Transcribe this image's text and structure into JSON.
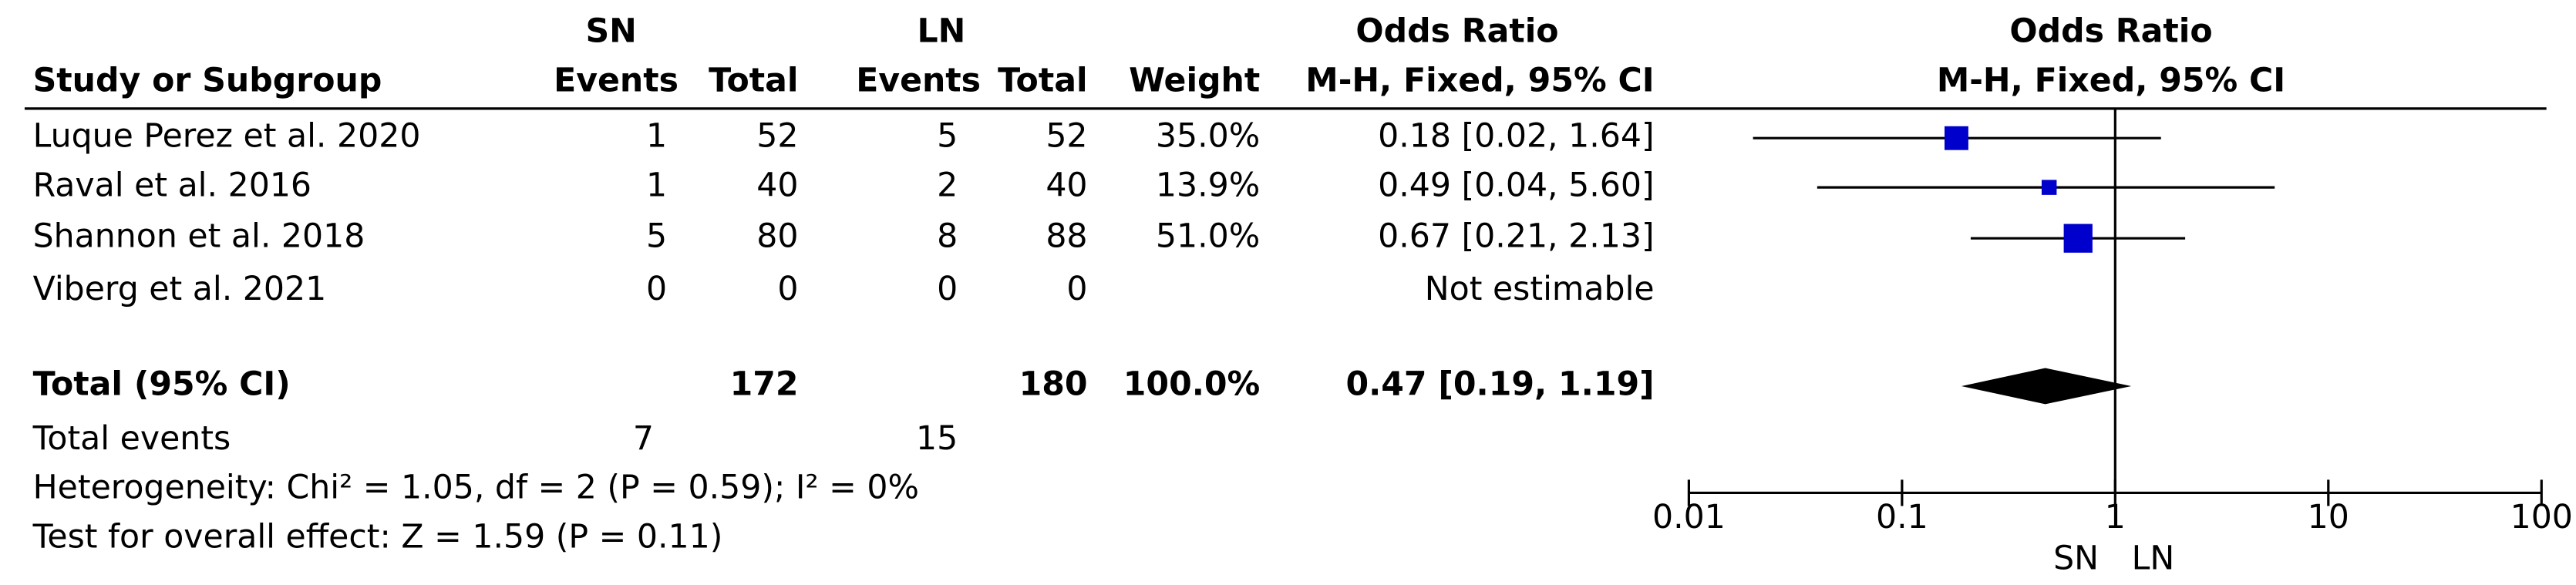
{
  "chart_data": {
    "type": "forest",
    "column_groups": [
      "SN",
      "LN",
      "Odds Ratio"
    ],
    "columns": [
      "Study or Subgroup",
      "Events",
      "Total",
      "Events",
      "Total",
      "Weight",
      "M-H, Fixed, 95% CI"
    ],
    "plot_title": "Odds Ratio",
    "plot_subtitle": "M-H, Fixed, 95% CI",
    "studies": [
      {
        "name": "Luque Perez et al. 2020",
        "sn_events": 1,
        "sn_total": 52,
        "ln_events": 5,
        "ln_total": 52,
        "weight": 35.0,
        "weight_label": "35.0%",
        "odds_ratio": 0.18,
        "ci_low": 0.02,
        "ci_high": 1.64,
        "or_label": "0.18 [0.02, 1.64]"
      },
      {
        "name": "Raval et al. 2016",
        "sn_events": 1,
        "sn_total": 40,
        "ln_events": 2,
        "ln_total": 40,
        "weight": 13.9,
        "weight_label": "13.9%",
        "odds_ratio": 0.49,
        "ci_low": 0.04,
        "ci_high": 5.6,
        "or_label": "0.49 [0.04, 5.60]"
      },
      {
        "name": "Shannon et al. 2018",
        "sn_events": 5,
        "sn_total": 80,
        "ln_events": 8,
        "ln_total": 88,
        "weight": 51.0,
        "weight_label": "51.0%",
        "odds_ratio": 0.67,
        "ci_low": 0.21,
        "ci_high": 2.13,
        "or_label": "0.67 [0.21, 2.13]"
      },
      {
        "name": "Viberg et al. 2021",
        "sn_events": 0,
        "sn_total": 0,
        "ln_events": 0,
        "ln_total": 0,
        "weight": null,
        "weight_label": null,
        "odds_ratio": null,
        "ci_low": null,
        "ci_high": null,
        "or_label": "Not estimable"
      }
    ],
    "total": {
      "name": "Total (95% CI)",
      "sn_total": 172,
      "ln_total": 180,
      "weight_label": "100.0%",
      "odds_ratio": 0.47,
      "ci_low": 0.19,
      "ci_high": 1.19,
      "or_label": "0.47 [0.19, 1.19]"
    },
    "total_events": {
      "label": "Total events",
      "sn_events": 7,
      "ln_events": 15
    },
    "heterogeneity": "Heterogeneity: Chi² = 1.05, df = 2 (P = 0.59); I² = 0%",
    "overall_effect": "Test for overall effect: Z = 1.59 (P = 0.11)",
    "log_x": true,
    "xlim": [
      0.01,
      100
    ],
    "xticks": [
      0.01,
      0.1,
      1,
      10,
      100
    ],
    "favours": [
      "SN",
      "LN"
    ],
    "marker_color": "#0000cc",
    "diamond_color": "#000000"
  }
}
